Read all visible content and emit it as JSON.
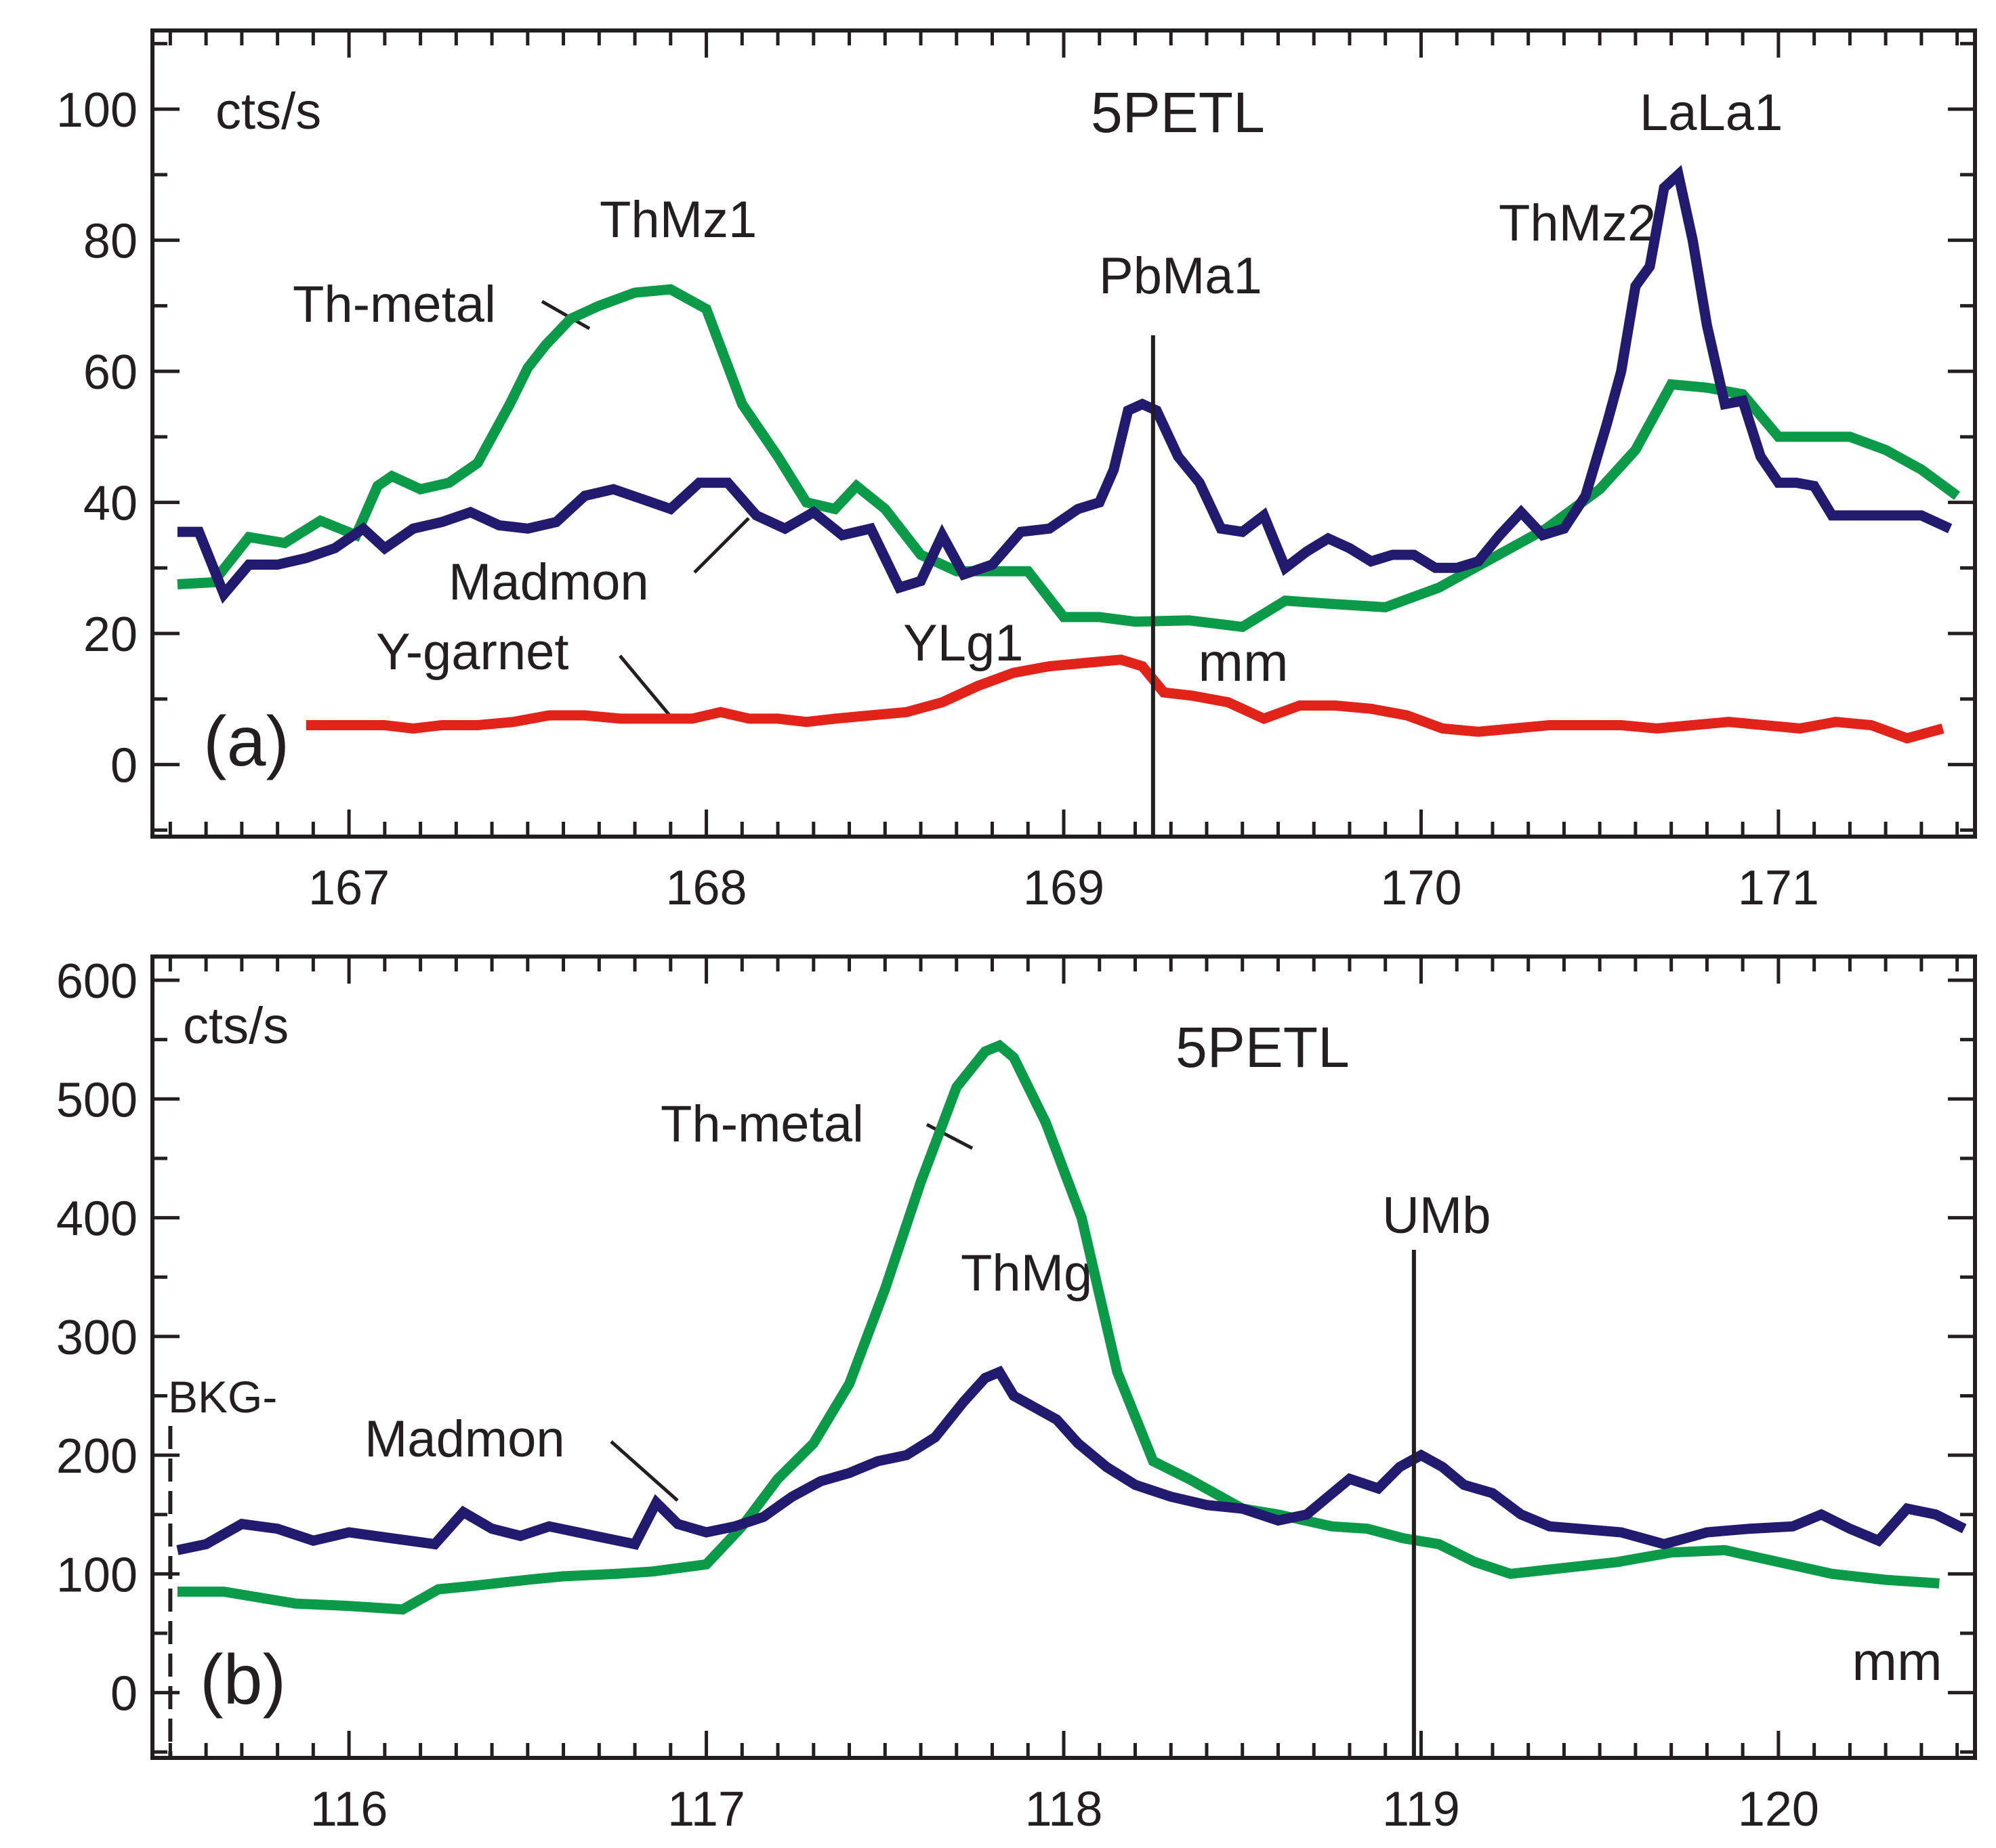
{
  "colors": {
    "thorium_metal": "#0b9b48",
    "madmon": "#221a6e",
    "y_garnet": "#e2231a",
    "axes": "#231f20"
  },
  "chart_data": [
    {
      "type": "line",
      "panel_label": "(a)",
      "title": "5PETL",
      "ylabel": "cts/s",
      "xlabel": "mm",
      "xlim": [
        166.45,
        171.55
      ],
      "ylim": [
        -11,
        112
      ],
      "xticks": [
        167,
        168,
        169,
        170,
        171
      ],
      "xtick_labels": [
        "167",
        "168",
        "169",
        "170",
        "171"
      ],
      "yticks": [
        0,
        20,
        40,
        60,
        80,
        100
      ],
      "ytick_labels": [
        "0",
        "20",
        "40",
        "60",
        "80",
        "100"
      ],
      "series": [
        {
          "name": "Th-metal",
          "color": "#0b9b48",
          "x": [
            166.52,
            166.62,
            166.72,
            166.82,
            166.92,
            167.02,
            167.08,
            167.12,
            167.2,
            167.28,
            167.36,
            167.45,
            167.5,
            167.55,
            167.62,
            167.7,
            167.8,
            167.9,
            168.0,
            168.1,
            168.2,
            168.28,
            168.36,
            168.42,
            168.5,
            168.6,
            168.7,
            168.8,
            168.9,
            169.0,
            169.1,
            169.2,
            169.35,
            169.5,
            169.62,
            169.75,
            169.9,
            170.05,
            170.2,
            170.35,
            170.5,
            170.6,
            170.7,
            170.8,
            170.9,
            171.0,
            171.1,
            171.2,
            171.3,
            171.4,
            171.5
          ],
          "y": [
            27.5,
            27.8,
            34.7,
            33.8,
            37.2,
            35,
            42.5,
            44,
            42,
            43,
            46,
            55,
            60.5,
            64,
            68,
            70,
            72,
            72.5,
            69.5,
            55,
            47,
            40,
            39,
            42.5,
            39,
            32,
            29.5,
            29.5,
            29.5,
            22.5,
            22.5,
            21.8,
            22,
            21,
            25,
            24.5,
            24,
            27,
            31.5,
            36,
            42,
            48,
            58,
            57.5,
            56.5,
            50,
            50,
            50,
            48,
            45,
            41
          ]
        },
        {
          "name": "Madmon",
          "color": "#221a6e",
          "x": [
            166.52,
            166.58,
            166.65,
            166.72,
            166.8,
            166.88,
            166.96,
            167.04,
            167.1,
            167.18,
            167.26,
            167.34,
            167.42,
            167.5,
            167.58,
            167.66,
            167.74,
            167.82,
            167.9,
            167.98,
            168.06,
            168.14,
            168.22,
            168.3,
            168.38,
            168.46,
            168.54,
            168.6,
            168.66,
            168.72,
            168.8,
            168.88,
            168.96,
            169.04,
            169.1,
            169.14,
            169.18,
            169.22,
            169.26,
            169.32,
            169.38,
            169.44,
            169.5,
            169.56,
            169.62,
            169.68,
            169.74,
            169.8,
            169.86,
            169.92,
            169.98,
            170.04,
            170.1,
            170.16,
            170.22,
            170.28,
            170.34,
            170.4,
            170.46,
            170.52,
            170.56,
            170.6,
            170.64,
            170.68,
            170.72,
            170.76,
            170.8,
            170.85,
            170.9,
            170.95,
            171.0,
            171.05,
            171.1,
            171.15,
            171.2,
            171.3,
            171.4,
            171.48
          ],
          "y": [
            35.5,
            35.5,
            26,
            30.5,
            30.5,
            31.5,
            33,
            36,
            33,
            36,
            37,
            38.5,
            36.5,
            36,
            37,
            41,
            42,
            40.5,
            39,
            43,
            43,
            38,
            36,
            38.5,
            35,
            36,
            27,
            28,
            35,
            29,
            30.5,
            35.5,
            36,
            39,
            40,
            45,
            54,
            55,
            54,
            47,
            43,
            36,
            35.5,
            38,
            30,
            32.5,
            34.5,
            33,
            31,
            32,
            32,
            30,
            30,
            31,
            35,
            38.5,
            35,
            36,
            41,
            52,
            60,
            73,
            76,
            88,
            90,
            80,
            67,
            55,
            55.5,
            47,
            43,
            43,
            42.5,
            38,
            38,
            38,
            38,
            36
          ]
        },
        {
          "name": "Y-garnet",
          "color": "#e2231a",
          "x": [
            166.88,
            167.0,
            167.1,
            167.18,
            167.26,
            167.36,
            167.46,
            167.56,
            167.66,
            167.76,
            167.86,
            167.96,
            168.04,
            168.12,
            168.2,
            168.28,
            168.36,
            168.46,
            168.56,
            168.66,
            168.76,
            168.86,
            168.96,
            169.06,
            169.16,
            169.22,
            169.28,
            169.36,
            169.46,
            169.56,
            169.66,
            169.76,
            169.86,
            169.96,
            170.06,
            170.16,
            170.26,
            170.36,
            170.46,
            170.56,
            170.66,
            170.76,
            170.86,
            170.96,
            171.06,
            171.16,
            171.26,
            171.36,
            171.46
          ],
          "y": [
            6,
            6,
            6,
            5.5,
            6,
            6,
            6.5,
            7.5,
            7.5,
            7,
            7,
            7,
            8,
            7,
            7,
            6.5,
            7,
            7.5,
            8,
            9.5,
            12,
            14,
            15,
            15.5,
            16,
            15,
            11,
            10.5,
            9.5,
            7,
            9,
            9,
            8.5,
            7.5,
            5.5,
            5,
            5.5,
            6,
            6,
            6,
            5.5,
            6,
            6.5,
            6,
            5.5,
            6.5,
            6,
            4,
            5.5
          ]
        }
      ],
      "annotations": [
        {
          "text": "ThMz1"
        },
        {
          "text": "Th-metal"
        },
        {
          "text": "PbMa1"
        },
        {
          "text": "ThMz2"
        },
        {
          "text": "LaLa1"
        },
        {
          "text": "Madmon"
        },
        {
          "text": "Y-garnet"
        },
        {
          "text": "YLg1"
        }
      ],
      "reference_lines": [
        {
          "x": 169.25,
          "label": "PbMa1",
          "style": "solid"
        }
      ]
    },
    {
      "type": "line",
      "panel_label": "(b)",
      "title": "5PETL",
      "ylabel": "cts/s",
      "xlabel": "mm",
      "xlim": [
        115.45,
        120.55
      ],
      "ylim": [
        -55,
        620
      ],
      "xticks": [
        116,
        117,
        118,
        119,
        120
      ],
      "xtick_labels": [
        "116",
        "117",
        "118",
        "119",
        "120"
      ],
      "yticks": [
        0,
        100,
        200,
        300,
        400,
        500,
        600
      ],
      "ytick_labels": [
        "0",
        "100",
        "200",
        "300",
        "400",
        "500",
        "600"
      ],
      "series": [
        {
          "name": "Th-metal",
          "color": "#0b9b48",
          "x": [
            115.52,
            115.65,
            115.75,
            115.85,
            116.0,
            116.15,
            116.25,
            116.35,
            116.5,
            116.6,
            116.75,
            116.85,
            117.0,
            117.1,
            117.2,
            117.3,
            117.4,
            117.5,
            117.6,
            117.7,
            117.78,
            117.82,
            117.86,
            117.95,
            118.05,
            118.15,
            118.25,
            118.35,
            118.5,
            118.6,
            118.75,
            118.85,
            118.95,
            119.05,
            119.15,
            119.25,
            119.4,
            119.55,
            119.7,
            119.85,
            120.0,
            120.15,
            120.3,
            120.45
          ],
          "y": [
            85,
            85,
            80,
            75,
            73,
            70,
            87,
            90,
            95,
            98,
            100,
            102,
            108,
            140,
            180,
            210,
            260,
            340,
            430,
            510,
            540,
            545,
            535,
            480,
            400,
            270,
            195,
            180,
            155,
            150,
            140,
            138,
            130,
            125,
            110,
            100,
            105,
            110,
            118,
            120,
            110,
            100,
            95,
            92
          ]
        },
        {
          "name": "Madmon",
          "color": "#221a6e",
          "x": [
            115.52,
            115.6,
            115.7,
            115.8,
            115.9,
            116.0,
            116.12,
            116.24,
            116.32,
            116.4,
            116.48,
            116.56,
            116.64,
            116.72,
            116.8,
            116.86,
            116.92,
            117.0,
            117.08,
            117.16,
            117.24,
            117.32,
            117.4,
            117.48,
            117.56,
            117.64,
            117.72,
            117.78,
            117.82,
            117.86,
            117.92,
            117.98,
            118.04,
            118.12,
            118.2,
            118.3,
            118.4,
            118.5,
            118.6,
            118.68,
            118.74,
            118.8,
            118.88,
            118.94,
            119.0,
            119.06,
            119.12,
            119.2,
            119.28,
            119.36,
            119.44,
            119.56,
            119.68,
            119.8,
            119.92,
            120.04,
            120.12,
            120.2,
            120.28,
            120.36,
            120.44,
            120.52
          ],
          "y": [
            120,
            125,
            142,
            138,
            128,
            135,
            130,
            125,
            152,
            138,
            132,
            140,
            135,
            130,
            125,
            160,
            142,
            135,
            140,
            148,
            165,
            178,
            185,
            195,
            200,
            215,
            245,
            265,
            270,
            250,
            240,
            230,
            210,
            190,
            175,
            165,
            158,
            155,
            145,
            150,
            165,
            180,
            172,
            190,
            200,
            190,
            175,
            168,
            150,
            140,
            138,
            135,
            125,
            135,
            138,
            140,
            150,
            138,
            128,
            155,
            150,
            138
          ]
        }
      ],
      "annotations": [
        {
          "text": "Th-metal"
        },
        {
          "text": "ThMg"
        },
        {
          "text": "UMb"
        },
        {
          "text": "BKG-"
        },
        {
          "text": "Madmon"
        }
      ],
      "reference_lines": [
        {
          "x": 118.98,
          "label": "UMb",
          "style": "solid"
        },
        {
          "x": 115.5,
          "label": "BKG-",
          "style": "dashed"
        }
      ]
    }
  ]
}
